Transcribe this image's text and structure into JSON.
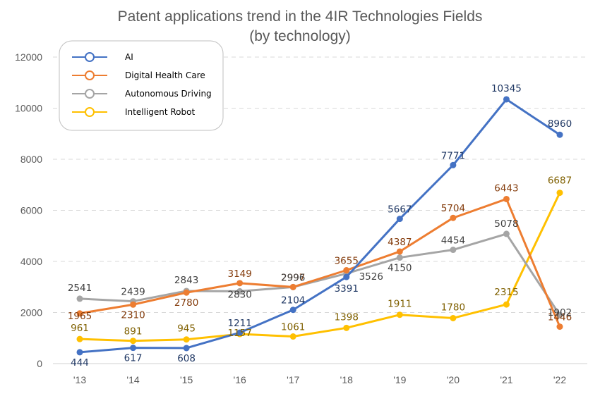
{
  "chart_data": {
    "type": "line",
    "title": "Patent applications trend in the 4IR Technologies Fields",
    "subtitle": "(by technology)",
    "xlabel": "",
    "ylabel": "",
    "categories": [
      "'13",
      "'14",
      "'15",
      "'16",
      "'17",
      "'18",
      "'19",
      "'20",
      "'21",
      "'22"
    ],
    "ylim": [
      0,
      12000
    ],
    "yticks": [
      0,
      2000,
      4000,
      6000,
      8000,
      10000,
      12000
    ],
    "grid": "horizontal-dashed",
    "legend_position": "top-left",
    "series": [
      {
        "name": "AI",
        "color": "#4472C4",
        "label_color": "#203864",
        "values": [
          444,
          617,
          608,
          1211,
          2104,
          3391,
          5667,
          7771,
          10345,
          8960
        ]
      },
      {
        "name": "Digital Health Care",
        "color": "#ED7D31",
        "label_color": "#843C0C",
        "values": [
          1965,
          2310,
          2780,
          3149,
          2997,
          3655,
          4387,
          5704,
          6443,
          1446
        ]
      },
      {
        "name": "Autonomous Driving",
        "color": "#A5A5A5",
        "label_color": "#404040",
        "values": [
          2541,
          2439,
          2843,
          2830,
          2996,
          3526,
          4150,
          4454,
          5078,
          1902
        ]
      },
      {
        "name": "Intelligent Robot",
        "color": "#FFC000",
        "label_color": "#7F6000",
        "values": [
          961,
          891,
          945,
          1157,
          1061,
          1398,
          1911,
          1780,
          2315,
          6687
        ]
      }
    ]
  }
}
